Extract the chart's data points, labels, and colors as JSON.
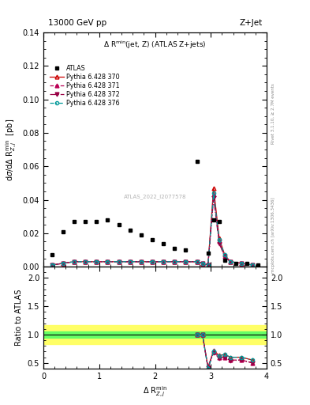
{
  "title_top": "13000 GeV pp",
  "title_right": "Z+Jet",
  "plot_title": "Δ R^{min}(jet, Z) (ATLAS Z+jets)",
  "ylabel_main": "dσ/dΔ R^{min}_{Z,j}  [pb]",
  "ylabel_ratio": "Ratio to ATLAS",
  "xlabel": "Δ R^{min}_{Z,j}",
  "watermark": "ATLAS_2022_I2077578",
  "rivet_text": "Rivet 3.1.10, ≥ 2.7M events",
  "arxiv_text": "mcplots.cern.ch [arXiv:1306.3436]",
  "xlim": [
    0,
    4
  ],
  "ylim_main": [
    0,
    0.14
  ],
  "ylim_ratio": [
    0.4,
    2.2
  ],
  "x_ticks": [
    0,
    1,
    2,
    3,
    4
  ],
  "y_ticks_main": [
    0,
    0.02,
    0.04,
    0.06,
    0.08,
    0.1,
    0.12,
    0.14
  ],
  "y_ticks_ratio": [
    0.5,
    1.0,
    1.5,
    2.0
  ],
  "atlas_x": [
    0.15,
    0.35,
    0.55,
    0.75,
    0.95,
    1.15,
    1.35,
    1.55,
    1.75,
    1.95,
    2.15,
    2.35,
    2.55,
    2.75,
    2.95,
    3.05,
    3.15,
    3.25,
    3.45,
    3.65,
    3.85
  ],
  "atlas_y": [
    0.007,
    0.021,
    0.027,
    0.027,
    0.027,
    0.028,
    0.025,
    0.022,
    0.019,
    0.016,
    0.014,
    0.011,
    0.01,
    0.063,
    0.008,
    0.028,
    0.027,
    0.004,
    0.002,
    0.002,
    0.001
  ],
  "py370_x": [
    0.15,
    0.35,
    0.55,
    0.75,
    0.95,
    1.15,
    1.35,
    1.55,
    1.75,
    1.95,
    2.15,
    2.35,
    2.55,
    2.75,
    2.85,
    2.95,
    3.05,
    3.15,
    3.25,
    3.35,
    3.55,
    3.75
  ],
  "py370_y": [
    0.001,
    0.002,
    0.003,
    0.003,
    0.003,
    0.003,
    0.003,
    0.003,
    0.003,
    0.003,
    0.003,
    0.003,
    0.003,
    0.003,
    0.002,
    0.001,
    0.047,
    0.017,
    0.007,
    0.003,
    0.002,
    0.001
  ],
  "py371_x": [
    0.15,
    0.35,
    0.55,
    0.75,
    0.95,
    1.15,
    1.35,
    1.55,
    1.75,
    1.95,
    2.15,
    2.35,
    2.55,
    2.75,
    2.85,
    2.95,
    3.05,
    3.15,
    3.25,
    3.35,
    3.55,
    3.75
  ],
  "py371_y": [
    0.001,
    0.002,
    0.003,
    0.003,
    0.003,
    0.003,
    0.003,
    0.003,
    0.003,
    0.003,
    0.003,
    0.003,
    0.003,
    0.003,
    0.002,
    0.001,
    0.043,
    0.015,
    0.006,
    0.003,
    0.002,
    0.001
  ],
  "py372_x": [
    0.15,
    0.35,
    0.55,
    0.75,
    0.95,
    1.15,
    1.35,
    1.55,
    1.75,
    1.95,
    2.15,
    2.35,
    2.55,
    2.75,
    2.85,
    2.95,
    3.05,
    3.15,
    3.25,
    3.35,
    3.55,
    3.75
  ],
  "py372_y": [
    0.001,
    0.002,
    0.003,
    0.003,
    0.003,
    0.003,
    0.003,
    0.003,
    0.003,
    0.003,
    0.003,
    0.003,
    0.003,
    0.003,
    0.002,
    0.001,
    0.041,
    0.014,
    0.006,
    0.003,
    0.002,
    0.001
  ],
  "py376_x": [
    0.15,
    0.35,
    0.55,
    0.75,
    0.95,
    1.15,
    1.35,
    1.55,
    1.75,
    1.95,
    2.15,
    2.35,
    2.55,
    2.75,
    2.85,
    2.95,
    3.05,
    3.15,
    3.25,
    3.35,
    3.55,
    3.75
  ],
  "py376_y": [
    0.001,
    0.002,
    0.003,
    0.003,
    0.003,
    0.003,
    0.003,
    0.003,
    0.003,
    0.003,
    0.003,
    0.003,
    0.003,
    0.003,
    0.002,
    0.001,
    0.044,
    0.016,
    0.007,
    0.003,
    0.002,
    0.001
  ],
  "ratio_x": [
    2.75,
    2.85,
    2.95,
    3.05,
    3.15,
    3.25,
    3.35,
    3.55,
    3.75
  ],
  "ratio370_y": [
    1.0,
    1.0,
    0.42,
    0.72,
    0.63,
    0.65,
    0.6,
    0.6,
    0.55
  ],
  "ratio371_y": [
    1.0,
    1.0,
    0.42,
    0.7,
    0.59,
    0.6,
    0.55,
    0.55,
    0.5
  ],
  "ratio372_y": [
    1.0,
    1.0,
    0.41,
    0.68,
    0.58,
    0.6,
    0.54,
    0.55,
    0.5
  ],
  "ratio376_y": [
    1.0,
    1.0,
    0.4,
    0.7,
    0.62,
    0.65,
    0.6,
    0.6,
    0.55
  ],
  "green_band_ylow": 0.95,
  "green_band_yhigh": 1.05,
  "yellow_band_ylow": 0.83,
  "yellow_band_yhigh": 1.17,
  "color_370": "#cc0000",
  "color_371": "#bb0055",
  "color_372": "#990044",
  "color_376": "#009999",
  "color_atlas": "black",
  "bg_color": "#ffffff"
}
